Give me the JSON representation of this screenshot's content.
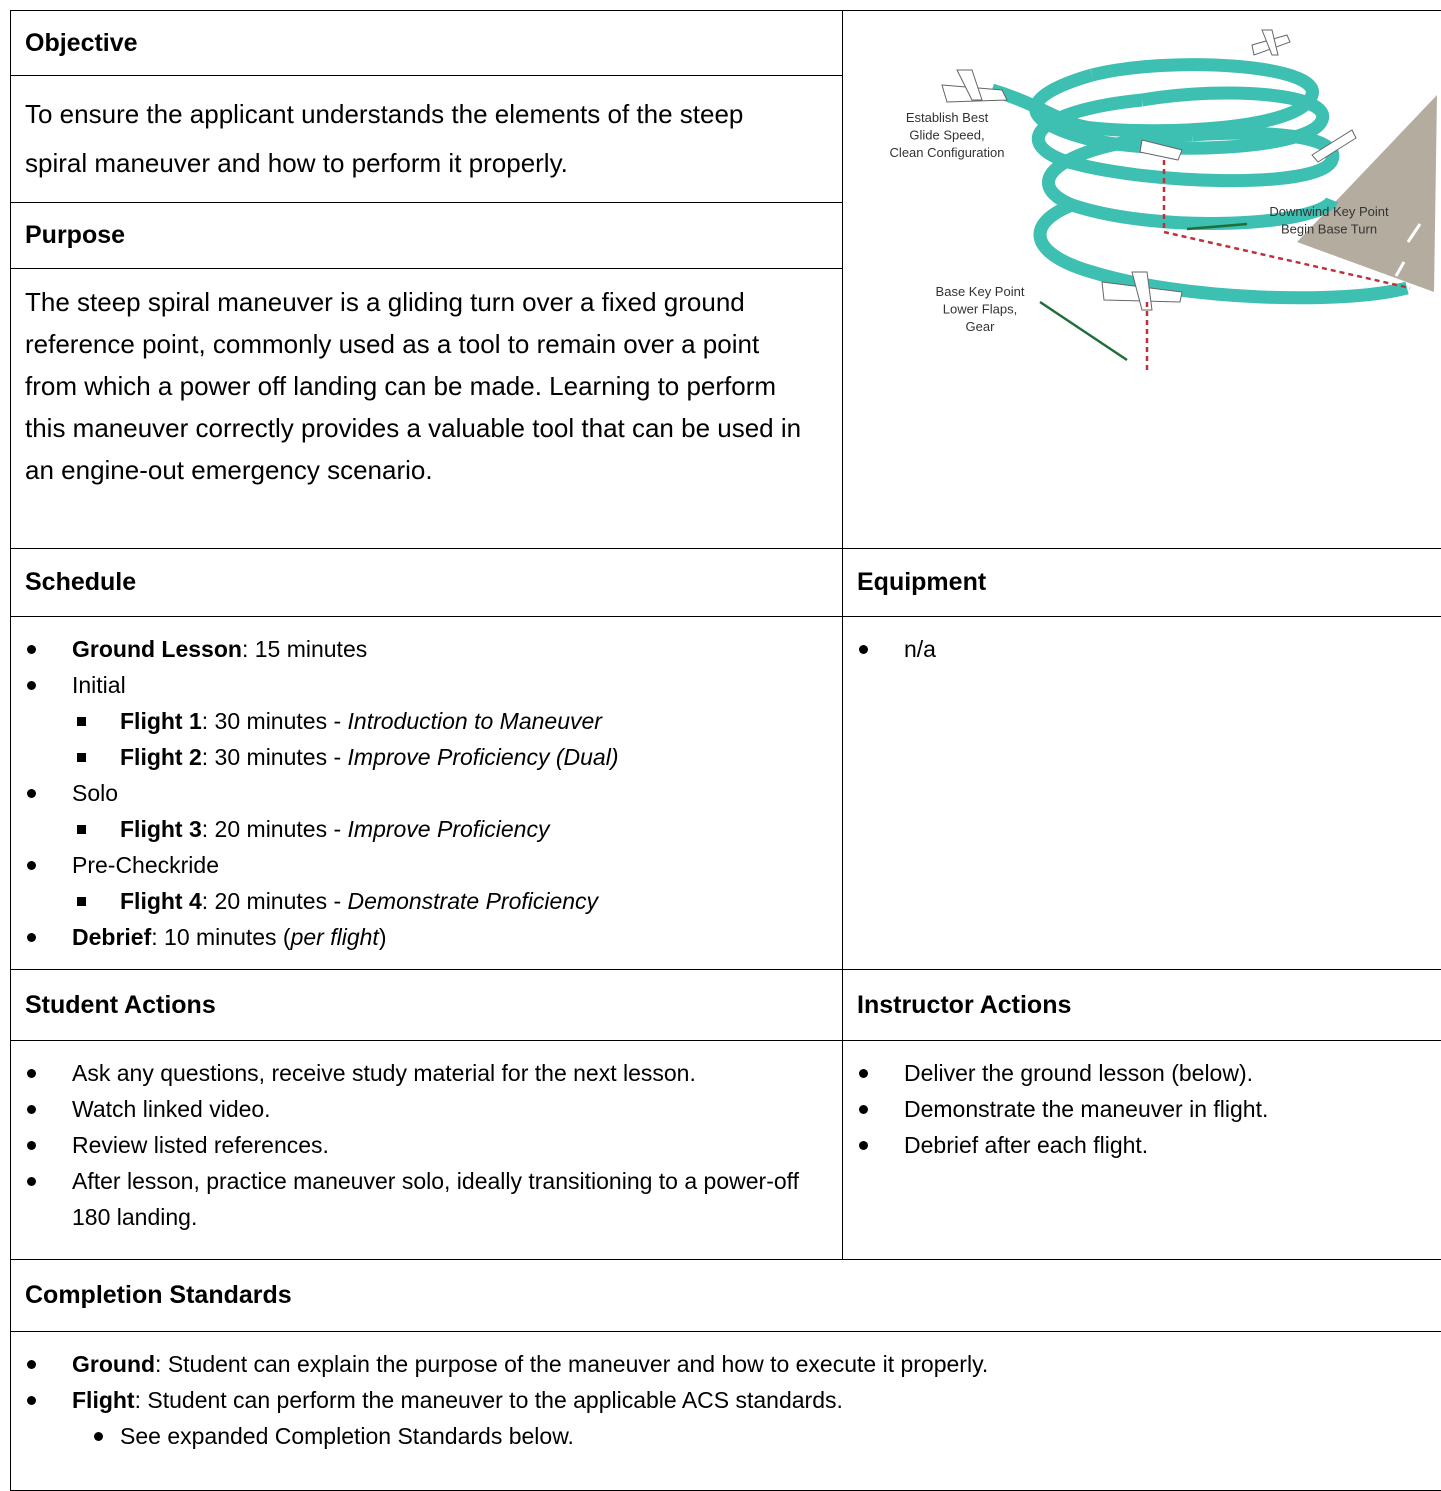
{
  "objective": {
    "heading": "Objective",
    "text": "To ensure the applicant understands the elements of the steep spiral maneuver and how to perform it properly."
  },
  "purpose": {
    "heading": "Purpose",
    "text": "The steep spiral maneuver is a gliding turn over a fixed ground reference point, commonly used as a tool to remain over a point from which a power off landing can be made. Learning to perform this maneuver correctly provides a valuable tool that can be used in an engine-out emergency scenario."
  },
  "diagram": {
    "best_glide": [
      "Establish Best",
      "Glide Speed,",
      "Clean Configuration"
    ],
    "downwind": [
      "Downwind Key Point",
      "Begin Base Turn"
    ],
    "base": [
      "Base Key Point",
      "Lower Flaps,",
      "Gear"
    ]
  },
  "schedule": {
    "heading": "Schedule",
    "sub_marker": "square",
    "items": [
      {
        "level": 1,
        "runs": [
          {
            "b": "Ground Lesson"
          },
          {
            "t": ": 15 minutes"
          }
        ]
      },
      {
        "level": 1,
        "runs": [
          {
            "t": "Initial"
          }
        ]
      },
      {
        "level": 2,
        "runs": [
          {
            "b": "Flight 1"
          },
          {
            "t": ": 30 minutes - "
          },
          {
            "i": "Introduction to Maneuver"
          }
        ]
      },
      {
        "level": 2,
        "runs": [
          {
            "b": "Flight 2"
          },
          {
            "t": ": 30 minutes - "
          },
          {
            "i": "Improve Proficiency (Dual)"
          }
        ]
      },
      {
        "level": 1,
        "runs": [
          {
            "t": "Solo"
          }
        ]
      },
      {
        "level": 2,
        "runs": [
          {
            "b": "Flight 3"
          },
          {
            "t": ": 20 minutes - "
          },
          {
            "i": "Improve Proficiency"
          }
        ]
      },
      {
        "level": 1,
        "runs": [
          {
            "t": "Pre-Checkride"
          }
        ]
      },
      {
        "level": 2,
        "runs": [
          {
            "b": "Flight 4"
          },
          {
            "t": ": 20 minutes - "
          },
          {
            "i": "Demonstrate Proficiency"
          }
        ]
      },
      {
        "level": 1,
        "runs": [
          {
            "b": "Debrief"
          },
          {
            "t": ": 10 minutes ("
          },
          {
            "i": "per flight"
          },
          {
            "t": ")"
          }
        ]
      }
    ]
  },
  "equipment": {
    "heading": "Equipment",
    "sub_marker": "disc",
    "items": [
      {
        "level": 1,
        "runs": [
          {
            "t": "n/a"
          }
        ]
      }
    ]
  },
  "student_actions": {
    "heading": "Student Actions",
    "sub_marker": "disc",
    "items": [
      {
        "level": 1,
        "runs": [
          {
            "t": "Ask any questions, receive study material for the next lesson."
          }
        ]
      },
      {
        "level": 1,
        "runs": [
          {
            "t": "Watch linked video."
          }
        ]
      },
      {
        "level": 1,
        "runs": [
          {
            "t": "Review listed references."
          }
        ]
      },
      {
        "level": 1,
        "runs": [
          {
            "t": "After lesson, practice maneuver solo, ideally transitioning to a power-off 180 landing."
          }
        ]
      }
    ]
  },
  "instructor_actions": {
    "heading": "Instructor Actions",
    "sub_marker": "disc",
    "items": [
      {
        "level": 1,
        "runs": [
          {
            "t": "Deliver the ground lesson (below)."
          }
        ]
      },
      {
        "level": 1,
        "runs": [
          {
            "t": "Demonstrate the maneuver in flight."
          }
        ]
      },
      {
        "level": 1,
        "runs": [
          {
            "t": "Debrief after each flight."
          }
        ]
      }
    ]
  },
  "completion_standards": {
    "heading": "Completion Standards",
    "sub_marker": "disc",
    "items": [
      {
        "level": 1,
        "runs": [
          {
            "b": "Ground"
          },
          {
            "t": ": Student can explain the purpose of the maneuver and how to execute it properly."
          }
        ]
      },
      {
        "level": 1,
        "runs": [
          {
            "b": "Flight"
          },
          {
            "t": ": Student can perform the maneuver to the applicable ACS standards."
          }
        ]
      },
      {
        "level": 2,
        "runs": [
          {
            "t": "See expanded Completion Standards below."
          }
        ]
      }
    ]
  }
}
